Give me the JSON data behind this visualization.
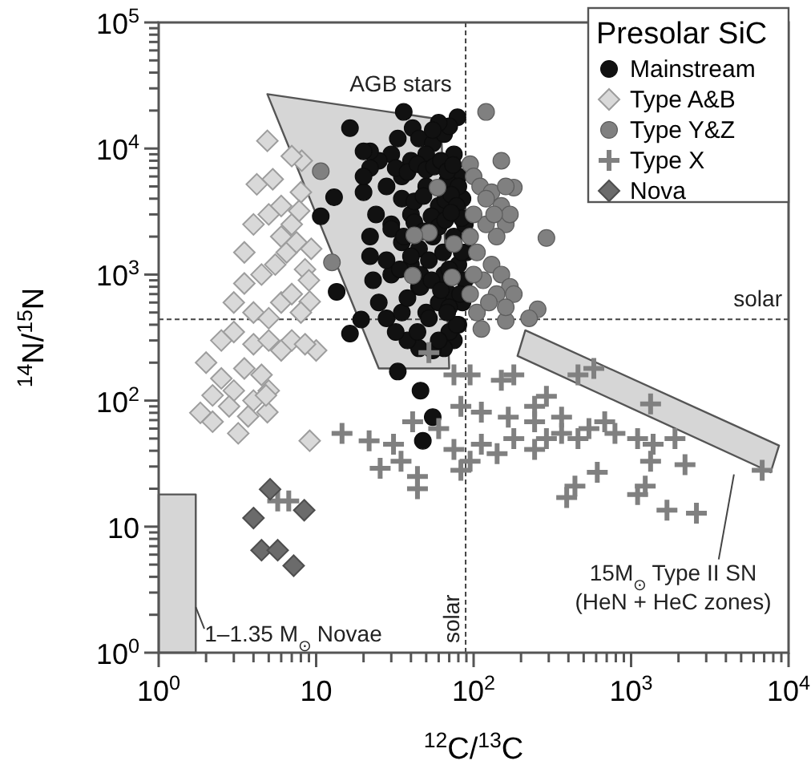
{
  "chart_data": {
    "type": "scatter",
    "xlabel": "$^{12}$C/$^{13}$C",
    "ylabel": "$^{14}$N/$^{15}$N",
    "legend_title": "Presolar SiC",
    "legend": "top right",
    "log": "xy",
    "xlim": [
      1,
      10000
    ],
    "ylim": [
      1,
      100000
    ],
    "xticks": [
      {
        "value": 1,
        "label": "10$^{0}$"
      },
      {
        "value": 2,
        "label": null
      },
      {
        "value": 3,
        "label": null
      },
      {
        "value": 4,
        "label": null
      },
      {
        "value": 5,
        "label": null
      },
      {
        "value": 6,
        "label": null
      },
      {
        "value": 7,
        "label": null
      },
      {
        "value": 8,
        "label": null
      },
      {
        "value": 9,
        "label": null
      },
      10,
      {
        "value": 20,
        "label": null
      },
      {
        "value": 30,
        "label": null
      },
      {
        "value": 40,
        "label": null
      },
      {
        "value": 50,
        "label": null
      },
      {
        "value": 60,
        "label": null
      },
      {
        "value": 70,
        "label": null
      },
      {
        "value": 80,
        "label": null
      },
      {
        "value": 90,
        "label": null
      },
      {
        "value": 100,
        "label": "10$^{2}$"
      },
      {
        "value": 200,
        "label": null
      },
      {
        "value": 300,
        "label": null
      },
      {
        "value": 400,
        "label": null
      },
      {
        "value": 500,
        "label": null
      },
      {
        "value": 600,
        "label": null
      },
      {
        "value": 700,
        "label": null
      },
      {
        "value": 800,
        "label": null
      },
      {
        "value": 900,
        "label": null
      },
      {
        "value": 1000,
        "label": "10$^{3}$"
      },
      {
        "value": 2000,
        "label": null
      },
      {
        "value": 3000,
        "label": null
      },
      {
        "value": 4000,
        "label": null
      },
      {
        "value": 5000,
        "label": null
      },
      {
        "value": 6000,
        "label": null
      },
      {
        "value": 7000,
        "label": null
      },
      {
        "value": 8000,
        "label": null
      },
      {
        "value": 9000,
        "label": null
      },
      {
        "value": 10000,
        "label": "10$^{4}$"
      }
    ],
    "yticks": [
      {
        "value": 1,
        "label": "10$^{0}$"
      },
      {
        "value": 2,
        "label": null
      },
      {
        "value": 3,
        "label": null
      },
      {
        "value": 4,
        "label": null
      },
      {
        "value": 5,
        "label": null
      },
      {
        "value": 6,
        "label": null
      },
      {
        "value": 7,
        "label": null
      },
      {
        "value": 8,
        "label": null
      },
      {
        "value": 9,
        "label": null
      },
      10,
      {
        "value": 20,
        "label": null
      },
      {
        "value": 30,
        "label": null
      },
      {
        "value": 40,
        "label": null
      },
      {
        "value": 50,
        "label": null
      },
      {
        "value": 60,
        "label": null
      },
      {
        "value": 70,
        "label": null
      },
      {
        "value": 80,
        "label": null
      },
      {
        "value": 90,
        "label": null
      },
      {
        "value": 100,
        "label": "10$^{2}$"
      },
      {
        "value": 200,
        "label": null
      },
      {
        "value": 300,
        "label": null
      },
      {
        "value": 400,
        "label": null
      },
      {
        "value": 500,
        "label": null
      },
      {
        "value": 600,
        "label": null
      },
      {
        "value": 700,
        "label": null
      },
      {
        "value": 800,
        "label": null
      },
      {
        "value": 900,
        "label": null
      },
      {
        "value": 1000,
        "label": "10$^{3}$"
      },
      {
        "value": 2000,
        "label": null
      },
      {
        "value": 3000,
        "label": null
      },
      {
        "value": 4000,
        "label": null
      },
      {
        "value": 5000,
        "label": null
      },
      {
        "value": 6000,
        "label": null
      },
      {
        "value": 7000,
        "label": null
      },
      {
        "value": 8000,
        "label": null
      },
      {
        "value": 9000,
        "label": null
      },
      {
        "value": 10000,
        "label": "10$^{4}$"
      },
      {
        "value": 20000,
        "label": null
      },
      {
        "value": 30000,
        "label": null
      },
      {
        "value": 40000,
        "label": null
      },
      {
        "value": 50000,
        "label": null
      },
      {
        "value": 60000,
        "label": null
      },
      {
        "value": 70000,
        "label": null
      },
      {
        "value": 80000,
        "label": null
      },
      {
        "value": 90000,
        "label": null
      },
      {
        "value": 100000,
        "label": "10$^{5}$"
      }
    ],
    "ref_lines": [
      {
        "axis": "x",
        "value": 89,
        "label": "solar",
        "line_style": "dashed"
      },
      {
        "axis": "y",
        "value": 441,
        "label": "solar",
        "line_style": "dashed"
      }
    ],
    "annotations": [
      "AGB stars",
      "15M$_{⊙}$ Type II SN\n(HeN + HeC zones)",
      "1–1.35 M$_{⊙}$ Novae"
    ],
    "series": [
      {
        "type": "area",
        "color": "#d6d6d6",
        "x": [
          4.9,
          62,
          70,
          25
        ],
        "values": [
          27000,
          17000,
          180,
          180
        ]
      },
      {
        "type": "area",
        "color": "#d6d6d6",
        "x": [
          213,
          8700,
          7700,
          190
        ],
        "values": [
          361,
          44,
          27,
          226
        ]
      },
      {
        "type": "area",
        "color": "#d6d6d6",
        "x": [
          1,
          1.72,
          1.72,
          1
        ],
        "values": [
          18,
          18,
          1,
          1
        ]
      },
      {
        "name": "Mainstream",
        "color": "#111111",
        "marker": "circle",
        "x": [
          16.4,
          36,
          41,
          79,
          13,
          10.7,
          13.5,
          16.4,
          19.3,
          33,
          46,
          55,
          47.6,
          45,
          55,
          65,
          70,
          60,
          50,
          30,
          25,
          22,
          20,
          28,
          35,
          40,
          75,
          80,
          85,
          88,
          90,
          88,
          85,
          80,
          75,
          65,
          55,
          45,
          38,
          32,
          28,
          25,
          23,
          22,
          22,
          24,
          30,
          35,
          40,
          45,
          50,
          55,
          60,
          65,
          70,
          75,
          50,
          40,
          30,
          60,
          70,
          35,
          80,
          68,
          45,
          55,
          33,
          22,
          20,
          20,
          32,
          38,
          44,
          50,
          56,
          62,
          68,
          74,
          80,
          35,
          42,
          48,
          66,
          72,
          78,
          84,
          30,
          36,
          42,
          48,
          54,
          60,
          66,
          72,
          84,
          28,
          34,
          40,
          46,
          52,
          64,
          70,
          82,
          38,
          46,
          54,
          62,
          70,
          78,
          44,
          52,
          60,
          68
        ],
        "values": [
          14500,
          19500,
          14500,
          17700,
          4100,
          2900,
          730,
          340,
          440,
          170,
          120,
          74,
          48,
          12000,
          11000,
          13000,
          15000,
          16000,
          9000,
          9000,
          8000,
          7000,
          4500,
          5000,
          6000,
          8000,
          9000,
          6000,
          4000,
          2500,
          1500,
          900,
          600,
          400,
          300,
          260,
          250,
          260,
          300,
          350,
          450,
          600,
          900,
          1400,
          2000,
          3000,
          2500,
          1800,
          1200,
          800,
          500,
          2000,
          3500,
          1000,
          700,
          2000,
          5000,
          3000,
          1000,
          600,
          350,
          500,
          1200,
          5500,
          1600,
          14000,
          12000,
          9500,
          9500,
          6000,
          7000,
          6500,
          7500,
          6800,
          7200,
          8000,
          6600,
          7400,
          5000,
          4000,
          3800,
          4200,
          3900,
          4300,
          3500,
          2800,
          2300,
          2000,
          2600,
          2200,
          2900,
          2400,
          2700,
          3100,
          1500,
          1300,
          1100,
          1400,
          1000,
          1300,
          1500,
          1100,
          700,
          650,
          800,
          900,
          750,
          550,
          400,
          350,
          450,
          300,
          500
        ]
      },
      {
        "name": "Type A&B",
        "color": "#d9d9d9",
        "marker": "diamond",
        "x": [
          4.9,
          8.1,
          7,
          4.2,
          5.3,
          3.5,
          1.84,
          2.2,
          3.2,
          4.9,
          9.1,
          9.1,
          10,
          6,
          7,
          8,
          5,
          4,
          3.5,
          4.5,
          5.5,
          6.5,
          7.5,
          8.5,
          9,
          3,
          4,
          5,
          6,
          7,
          8,
          2.5,
          3,
          4,
          5,
          6,
          7,
          8.5,
          2,
          2.5,
          3.5,
          4.5,
          5,
          2.2,
          3,
          4,
          4.8,
          2.8,
          3.7,
          6,
          7.8,
          9.3
        ],
        "values": [
          11500,
          8000,
          8700,
          5200,
          5700,
          1500,
          80,
          68,
          55,
          81,
          48,
          610,
          250,
          3500,
          2500,
          4500,
          3000,
          2500,
          850,
          1000,
          1200,
          1500,
          1800,
          1100,
          900,
          600,
          500,
          450,
          600,
          700,
          500,
          300,
          350,
          280,
          300,
          250,
          300,
          280,
          200,
          150,
          180,
          160,
          120,
          110,
          120,
          100,
          110,
          90,
          75,
          2000,
          3200,
          1600
        ]
      },
      {
        "name": "Type Y&Z",
        "color": "#808080",
        "marker": "circle",
        "x": [
          10.7,
          120,
          95,
          150,
          180,
          290,
          255,
          160,
          225,
          112,
          12.6,
          59,
          52,
          75,
          73,
          42,
          41,
          100,
          110,
          130,
          150,
          160,
          170,
          140,
          120,
          100,
          95,
          105,
          130,
          150,
          170,
          180,
          140,
          115,
          100,
          95,
          105,
          125,
          160,
          120,
          160,
          135
        ],
        "values": [
          6600,
          19500,
          7500,
          8000,
          4900,
          1950,
          530,
          430,
          450,
          370,
          1250,
          4900,
          2150,
          1750,
          950,
          2050,
          980,
          6000,
          5000,
          4500,
          3500,
          2500,
          3000,
          2000,
          2500,
          3000,
          2000,
          1500,
          1200,
          1000,
          800,
          700,
          700,
          900,
          1000,
          700,
          500,
          600,
          550,
          4000,
          5000,
          3000
        ]
      },
      {
        "name": "Type X",
        "color": "#808080",
        "marker": "cross",
        "x": [
          14.6,
          21.7,
          31,
          25.5,
          34.6,
          41,
          44,
          44,
          52,
          5.7,
          6.7,
          75,
          95,
          150,
          83,
          112,
          166,
          244,
          290,
          362,
          540,
          790,
          290,
          180,
          112,
          95,
          83,
          141,
          244,
          460,
          680,
          460,
          580,
          1330,
          1100,
          1380,
          1900,
          1330,
          2200,
          610,
          440,
          390,
          1100,
          1230,
          1690,
          2600,
          6800,
          180,
          244,
          362,
          75,
          60
        ],
        "values": [
          55,
          48,
          45,
          29,
          33,
          68,
          25,
          20,
          240,
          16,
          16,
          160,
          160,
          145,
          90,
          81,
          74,
          90,
          108,
          74,
          60,
          55,
          50,
          50,
          45,
          33,
          28,
          38,
          41,
          50,
          68,
          160,
          180,
          94,
          50,
          45,
          50,
          33,
          31,
          27,
          21,
          17,
          18,
          21,
          13.5,
          12.8,
          28,
          160,
          68,
          55,
          41,
          60
        ]
      },
      {
        "name": "Nova",
        "color": "#6b6b6b",
        "marker": "diamond",
        "x": [
          5.1,
          8.4,
          4,
          4.5,
          5.7,
          7.2
        ],
        "values": [
          19.8,
          13.5,
          11.7,
          6.5,
          6.5,
          4.9
        ]
      }
    ]
  }
}
